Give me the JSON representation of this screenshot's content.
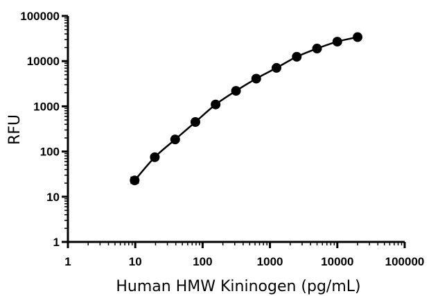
{
  "chart_data": {
    "type": "scatter",
    "xlabel": "Human HMW Kininogen (pg/mL)",
    "ylabel": "RFU",
    "x_scale": "log",
    "y_scale": "log",
    "xlim": [
      1,
      100000
    ],
    "ylim": [
      1,
      100000
    ],
    "x_ticks": [
      "1",
      "10",
      "100",
      "1000",
      "10000",
      "100000"
    ],
    "y_ticks": [
      "1",
      "10",
      "100",
      "1000",
      "10000",
      "100000"
    ],
    "grid": false,
    "legend": "none",
    "series": [
      {
        "points": [
          {
            "x": 9.8,
            "y": 23
          },
          {
            "x": 19.5,
            "y": 75
          },
          {
            "x": 39.1,
            "y": 185
          },
          {
            "x": 78.1,
            "y": 450
          },
          {
            "x": 156,
            "y": 1100
          },
          {
            "x": 313,
            "y": 2200
          },
          {
            "x": 625,
            "y": 4100
          },
          {
            "x": 1250,
            "y": 7100
          },
          {
            "x": 2500,
            "y": 12500
          },
          {
            "x": 5000,
            "y": 19000
          },
          {
            "x": 10000,
            "y": 27000
          },
          {
            "x": 20000,
            "y": 34000
          }
        ],
        "error": [
          {
            "x": 9.8,
            "low": 20,
            "high": 27
          }
        ],
        "color": "#000000",
        "marker": "filled-circle",
        "fit_curve": true
      }
    ]
  }
}
